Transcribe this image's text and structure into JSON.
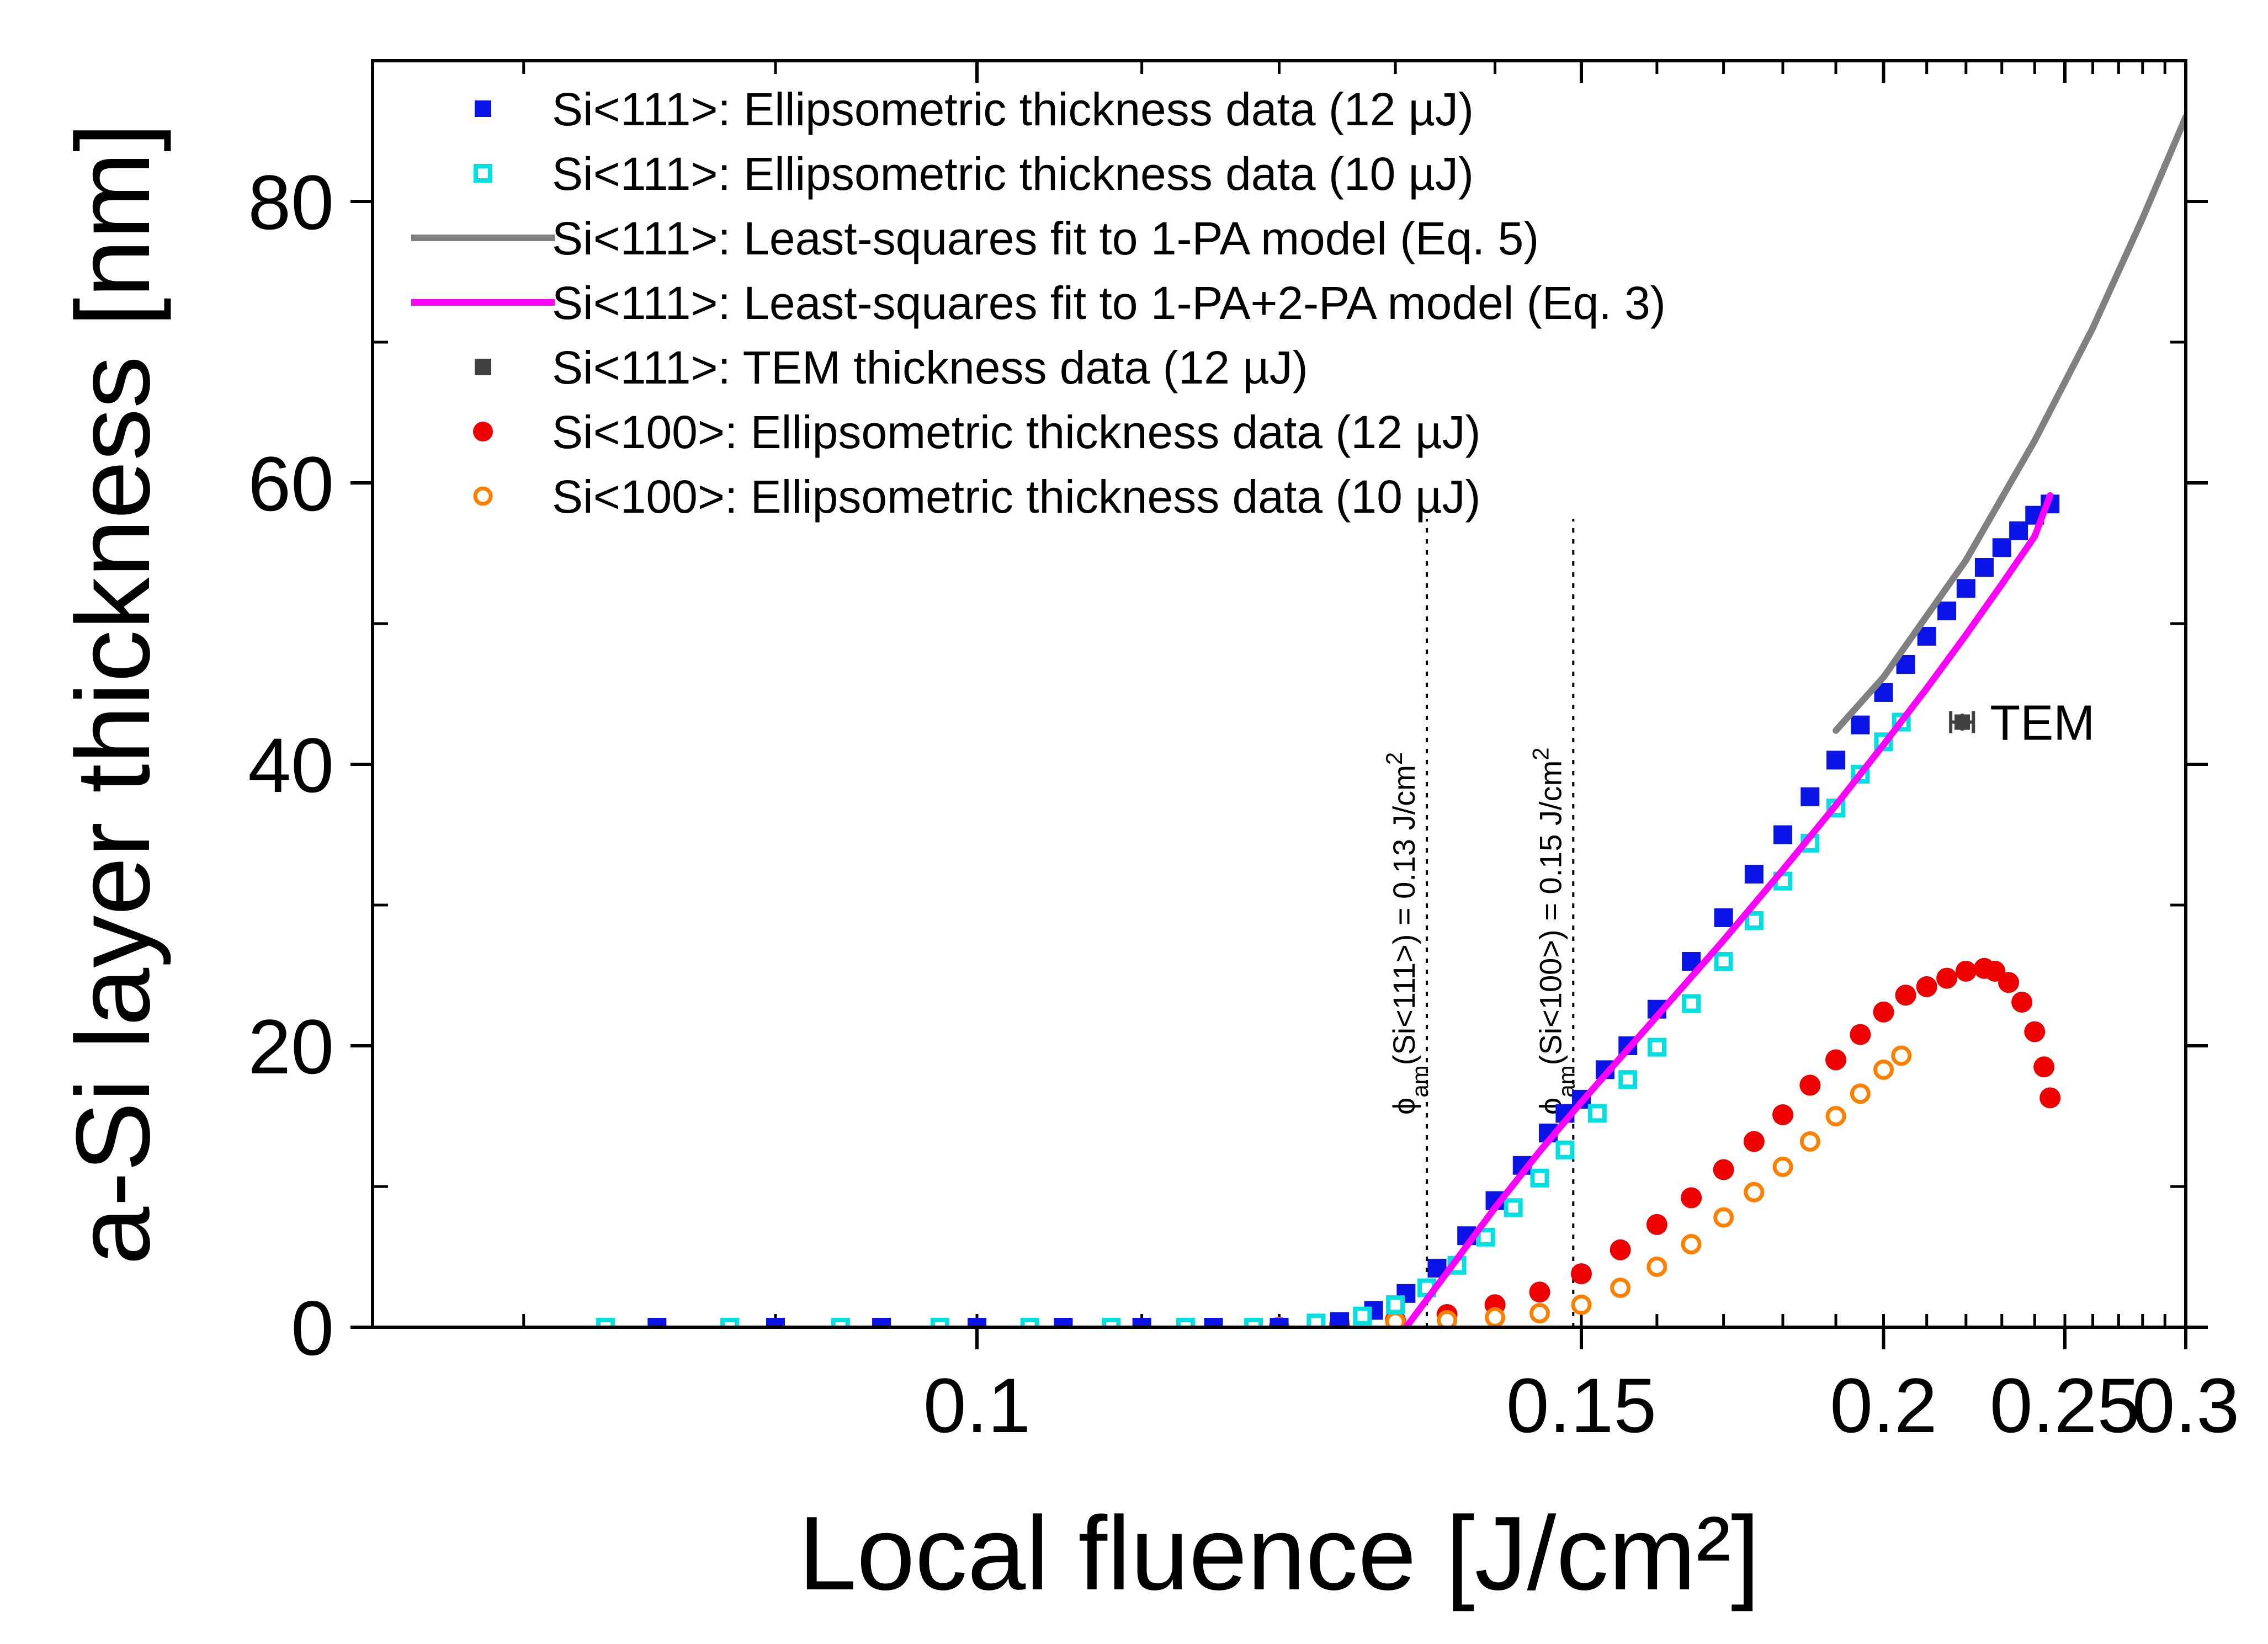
{
  "chart_data": {
    "type": "scatter",
    "title": "",
    "xlabel": "Local fluence  [J/cm²]",
    "ylabel": "a-Si layer thickness  [nm]",
    "x_scale": "reciprocal",
    "xlim": [
      0.075,
      0.3
    ],
    "ylim": [
      0,
      90
    ],
    "x_ticks": [
      {
        "value": 0.1,
        "label": "0.1"
      },
      {
        "value": 0.15,
        "label": "0.15"
      },
      {
        "value": 0.2,
        "label": "0.2"
      },
      {
        "value": 0.25,
        "label": "0.25"
      },
      {
        "value": 0.3,
        "label": "0.3"
      }
    ],
    "y_ticks": [
      {
        "value": 0,
        "label": "0"
      },
      {
        "value": 20,
        "label": "20"
      },
      {
        "value": 40,
        "label": "40"
      },
      {
        "value": 60,
        "label": "60"
      },
      {
        "value": 80,
        "label": "80"
      }
    ],
    "legend_position": "top-left",
    "series": [
      {
        "name": "Si<111>: Ellipsometric thickness data (12 µJ)",
        "marker": "square-filled",
        "color": "#0a14e6",
        "x": [
          0.085,
          0.09,
          0.095,
          0.1,
          0.105,
          0.11,
          0.115,
          0.12,
          0.125,
          0.128,
          0.131,
          0.134,
          0.137,
          0.14,
          0.143,
          0.146,
          0.148,
          0.15,
          0.153,
          0.156,
          0.16,
          0.165,
          0.17,
          0.175,
          0.18,
          0.185,
          0.19,
          0.195,
          0.2,
          0.205,
          0.21,
          0.215,
          0.22,
          0.225,
          0.23,
          0.235,
          0.24,
          0.245
        ],
        "y": [
          0,
          0,
          0,
          0,
          0,
          0,
          0,
          0,
          0.4,
          1.2,
          2.4,
          4.2,
          6.5,
          9,
          11.5,
          13.8,
          15.2,
          16.2,
          18.3,
          20,
          22.6,
          26,
          29.1,
          32.2,
          35,
          37.7,
          40.3,
          42.8,
          45.1,
          47.1,
          49.1,
          50.9,
          52.5,
          54,
          55.4,
          56.6,
          57.7,
          58.5
        ]
      },
      {
        "name": "Si<111>: Ellipsometric thickness data (10 µJ)",
        "marker": "square-open",
        "color": "#00e0e0",
        "x": [
          0.083,
          0.088,
          0.093,
          0.098,
          0.103,
          0.108,
          0.113,
          0.118,
          0.123,
          0.127,
          0.13,
          0.133,
          0.136,
          0.139,
          0.142,
          0.145,
          0.148,
          0.152,
          0.156,
          0.16,
          0.165,
          0.17,
          0.175,
          0.18,
          0.185,
          0.19,
          0.195,
          0.2,
          0.204
        ],
        "y": [
          0,
          0,
          0,
          0,
          0,
          0,
          0,
          0,
          0.3,
          0.8,
          1.6,
          2.8,
          4.4,
          6.4,
          8.5,
          10.6,
          12.6,
          15.2,
          17.6,
          19.9,
          23,
          26,
          28.9,
          31.7,
          34.4,
          36.9,
          39.3,
          41.6,
          43
        ]
      },
      {
        "name": "Si<111>: Least-squares fit to 1-PA model (Eq. 5)",
        "marker": "line",
        "color": "#808080",
        "x": [
          0.19,
          0.2,
          0.22,
          0.24,
          0.26,
          0.28,
          0.3
        ],
        "y": [
          42.4,
          46.2,
          54.5,
          63,
          71,
          78.8,
          86
        ]
      },
      {
        "name": "Si<111>: Least-squares fit to 1-PA+2-PA model (Eq. 3)",
        "marker": "line",
        "color": "#ff00ff",
        "x": [
          0.131,
          0.135,
          0.14,
          0.145,
          0.15,
          0.16,
          0.17,
          0.18,
          0.19,
          0.2,
          0.21,
          0.22,
          0.23,
          0.24,
          0.245
        ],
        "y": [
          0,
          3.9,
          8.5,
          12.5,
          16,
          22.1,
          27.5,
          32.5,
          37.1,
          41.4,
          45.4,
          49.2,
          52.8,
          56.2,
          59.1
        ]
      },
      {
        "name": "Si<111>: TEM thickness data (12 µJ)",
        "marker": "square-filled",
        "color": "#404040",
        "x": [
          0.219
        ],
        "y": [
          43
        ],
        "x_err": [
          0.003
        ],
        "y_err": [
          0.6
        ],
        "annotation": "TEM"
      },
      {
        "name": "Si<100>: Ellipsometric thickness data (12 µJ)",
        "marker": "circle-filled",
        "color": "#ee0000",
        "x": [
          0.12,
          0.125,
          0.13,
          0.135,
          0.14,
          0.145,
          0.15,
          0.155,
          0.16,
          0.165,
          0.17,
          0.175,
          0.18,
          0.185,
          0.19,
          0.195,
          0.2,
          0.205,
          0.21,
          0.215,
          0.22,
          0.225,
          0.228,
          0.232,
          0.236,
          0.24,
          0.243,
          0.245
        ],
        "y": [
          0,
          0.2,
          0.5,
          0.9,
          1.6,
          2.5,
          3.8,
          5.5,
          7.3,
          9.2,
          11.2,
          13.2,
          15.1,
          17.2,
          19,
          20.8,
          22.4,
          23.6,
          24.2,
          24.8,
          25.3,
          25.5,
          25.3,
          24.5,
          23.1,
          21,
          18.5,
          16.3
        ]
      },
      {
        "name": "Si<100>: Ellipsometric thickness data (10 µJ)",
        "marker": "circle-open",
        "color": "#ff8000",
        "x": [
          0.12,
          0.125,
          0.13,
          0.135,
          0.14,
          0.145,
          0.15,
          0.155,
          0.16,
          0.165,
          0.17,
          0.175,
          0.18,
          0.185,
          0.19,
          0.195,
          0.2,
          0.204
        ],
        "y": [
          0,
          0.3,
          0.4,
          0.5,
          0.7,
          1,
          1.6,
          2.8,
          4.3,
          5.9,
          7.8,
          9.6,
          11.4,
          13.2,
          15,
          16.6,
          18.3,
          19.3
        ]
      }
    ],
    "annotations": [
      {
        "x": 0.133,
        "label_prefix": "ϕ",
        "label_sub": "am",
        "label_mid": "(Si<111>) = 0.13 J/cm",
        "label_sup": "2"
      },
      {
        "x": 0.149,
        "label_prefix": "ϕ",
        "label_sub": "am",
        "label_mid": "(Si<100>) = 0.15 J/cm",
        "label_sup": "2"
      }
    ]
  }
}
